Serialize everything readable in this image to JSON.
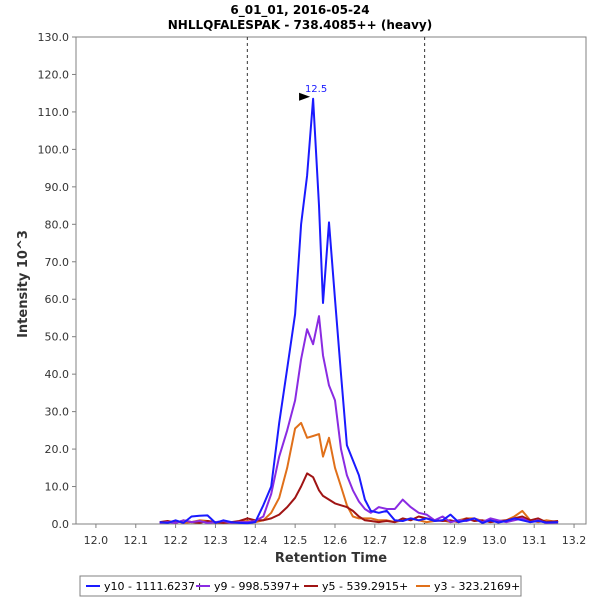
{
  "chart_data": {
    "type": "line",
    "title": [
      "6_01_01, 2016-05-24",
      "NHLLQFALESPAK - 738.4085++ (heavy)"
    ],
    "xlabel": "Retention Time",
    "ylabel": "Intensity 10^3",
    "xlim": [
      11.95,
      13.23
    ],
    "ylim": [
      0,
      130
    ],
    "x_ticks": [
      "12.0",
      "12.1",
      "12.2",
      "12.3",
      "12.4",
      "12.5",
      "12.6",
      "12.7",
      "12.8",
      "12.9",
      "13.0",
      "13.1",
      "13.2"
    ],
    "x_tick_values": [
      12.0,
      12.1,
      12.2,
      12.3,
      12.4,
      12.5,
      12.6,
      12.7,
      12.8,
      12.9,
      13.0,
      13.1,
      13.2
    ],
    "y_ticks": [
      "0.0",
      "10.0",
      "20.0",
      "30.0",
      "40.0",
      "50.0",
      "60.0",
      "70.0",
      "80.0",
      "90.0",
      "100.0",
      "110.0",
      "120.0",
      "130.0"
    ],
    "y_tick_values": [
      0,
      10,
      20,
      30,
      40,
      50,
      60,
      70,
      80,
      90,
      100,
      110,
      120,
      130
    ],
    "boundaries": [
      12.38,
      12.825
    ],
    "peak_annotation": {
      "label": "12.5",
      "x": 12.545,
      "y": 113.5
    },
    "series": [
      {
        "name": "y10 - 1111.6237+",
        "color": "#1a1aff",
        "x": [
          12.16,
          12.18,
          12.2,
          12.22,
          12.24,
          12.26,
          12.28,
          12.3,
          12.32,
          12.34,
          12.36,
          12.38,
          12.4,
          12.42,
          12.44,
          12.46,
          12.48,
          12.5,
          12.515,
          12.53,
          12.545,
          12.56,
          12.57,
          12.585,
          12.6,
          12.615,
          12.63,
          12.645,
          12.66,
          12.675,
          12.69,
          12.71,
          12.73,
          12.75,
          12.77,
          12.79,
          12.81,
          12.83,
          12.85,
          12.87,
          12.89,
          12.91,
          12.93,
          12.95,
          12.97,
          12.99,
          13.01,
          13.03,
          13.05,
          13.07,
          13.09,
          13.11,
          13.13,
          13.16
        ],
        "values": [
          0.5,
          0.3,
          1.0,
          0.3,
          2.0,
          2.2,
          2.3,
          0.3,
          1.0,
          0.5,
          0.3,
          0.2,
          0.5,
          5.0,
          10.0,
          27.0,
          41.5,
          56.0,
          80.0,
          93.0,
          113.5,
          85.0,
          59.0,
          80.5,
          60.0,
          40.0,
          21.0,
          17.0,
          13.0,
          6.5,
          3.5,
          3.0,
          3.5,
          1.0,
          0.8,
          1.5,
          1.0,
          1.5,
          0.8,
          1.0,
          2.5,
          0.5,
          1.0,
          1.5,
          0.3,
          1.0,
          0.4,
          0.8,
          1.5,
          1.0,
          0.5,
          0.8,
          0.4,
          0.5
        ]
      },
      {
        "name": "y9 - 998.5397+",
        "color": "#8a2be2",
        "x": [
          12.16,
          12.18,
          12.2,
          12.22,
          12.24,
          12.26,
          12.28,
          12.3,
          12.32,
          12.34,
          12.36,
          12.38,
          12.4,
          12.42,
          12.44,
          12.46,
          12.48,
          12.5,
          12.515,
          12.53,
          12.545,
          12.56,
          12.57,
          12.585,
          12.6,
          12.615,
          12.63,
          12.645,
          12.66,
          12.675,
          12.69,
          12.71,
          12.73,
          12.75,
          12.77,
          12.79,
          12.81,
          12.83,
          12.85,
          12.87,
          12.89,
          12.91,
          12.93,
          12.95,
          12.97,
          12.99,
          13.01,
          13.03,
          13.05,
          13.07,
          13.09,
          13.11,
          13.13,
          13.16
        ],
        "values": [
          0.3,
          0.5,
          0.3,
          1.0,
          0.5,
          0.8,
          0.3,
          0.5,
          0.8,
          0.3,
          0.5,
          0.5,
          0.8,
          2.0,
          8.0,
          18.0,
          25.0,
          33.0,
          44.0,
          52.0,
          48.0,
          55.5,
          45.0,
          37.0,
          33.0,
          20.0,
          13.0,
          9.0,
          6.0,
          4.0,
          3.0,
          4.5,
          4.0,
          4.0,
          6.5,
          4.5,
          3.0,
          2.5,
          1.0,
          2.0,
          0.5,
          1.0,
          0.8,
          1.5,
          0.5,
          1.5,
          1.0,
          0.5,
          1.0,
          1.5,
          0.5,
          1.0,
          0.3,
          0.4
        ]
      },
      {
        "name": "y5 - 539.2915+",
        "color": "#a01414",
        "x": [
          12.16,
          12.18,
          12.2,
          12.22,
          12.24,
          12.26,
          12.28,
          12.3,
          12.32,
          12.34,
          12.36,
          12.38,
          12.4,
          12.42,
          12.44,
          12.46,
          12.48,
          12.5,
          12.515,
          12.53,
          12.545,
          12.56,
          12.57,
          12.585,
          12.6,
          12.615,
          12.63,
          12.645,
          12.66,
          12.675,
          12.69,
          12.71,
          12.73,
          12.75,
          12.77,
          12.79,
          12.81,
          12.83,
          12.85,
          12.87,
          12.89,
          12.91,
          12.93,
          12.95,
          12.97,
          12.99,
          13.01,
          13.03,
          13.05,
          13.07,
          13.09,
          13.11,
          13.13,
          13.16
        ],
        "values": [
          0.5,
          0.8,
          0.3,
          1.0,
          0.5,
          0.3,
          0.8,
          0.5,
          0.3,
          0.5,
          0.8,
          1.5,
          1.0,
          1.0,
          1.5,
          2.5,
          4.5,
          7.0,
          10.0,
          13.5,
          12.5,
          9.0,
          7.5,
          6.5,
          5.5,
          5.0,
          4.5,
          3.5,
          2.0,
          1.0,
          0.8,
          0.5,
          0.8,
          0.5,
          1.5,
          1.0,
          2.0,
          1.5,
          1.0,
          0.8,
          1.0,
          0.5,
          1.5,
          0.8,
          1.0,
          0.5,
          0.8,
          1.0,
          1.5,
          2.0,
          1.0,
          1.5,
          0.5,
          0.8
        ]
      },
      {
        "name": "y3 - 323.2169+",
        "color": "#e0701a",
        "x": [
          12.16,
          12.18,
          12.2,
          12.22,
          12.24,
          12.26,
          12.28,
          12.3,
          12.32,
          12.34,
          12.36,
          12.38,
          12.4,
          12.42,
          12.44,
          12.46,
          12.48,
          12.5,
          12.515,
          12.53,
          12.545,
          12.56,
          12.57,
          12.585,
          12.6,
          12.615,
          12.63,
          12.645,
          12.66,
          12.675,
          12.69,
          12.71,
          12.73,
          12.75,
          12.77,
          12.79,
          12.81,
          12.83,
          12.85,
          12.87,
          12.89,
          12.91,
          12.93,
          12.95,
          12.97,
          12.99,
          13.01,
          13.03,
          13.05,
          13.07,
          13.09,
          13.11,
          13.13,
          13.16
        ],
        "values": [
          0.3,
          0.5,
          0.8,
          0.3,
          0.5,
          1.0,
          0.8,
          0.3,
          0.5,
          0.3,
          0.5,
          0.8,
          0.5,
          1.0,
          3.0,
          7.0,
          15.0,
          25.5,
          27.0,
          23.0,
          23.5,
          24.0,
          18.0,
          23.0,
          15.0,
          10.0,
          5.0,
          2.0,
          1.5,
          1.5,
          1.5,
          1.0,
          1.0,
          0.5,
          1.0,
          1.5,
          1.0,
          0.5,
          0.8,
          1.0,
          0.5,
          1.0,
          1.5,
          1.5,
          0.8,
          1.0,
          0.5,
          1.0,
          2.0,
          3.5,
          1.0,
          0.5,
          1.0,
          0.5
        ]
      }
    ],
    "legend_position": "bottom"
  }
}
